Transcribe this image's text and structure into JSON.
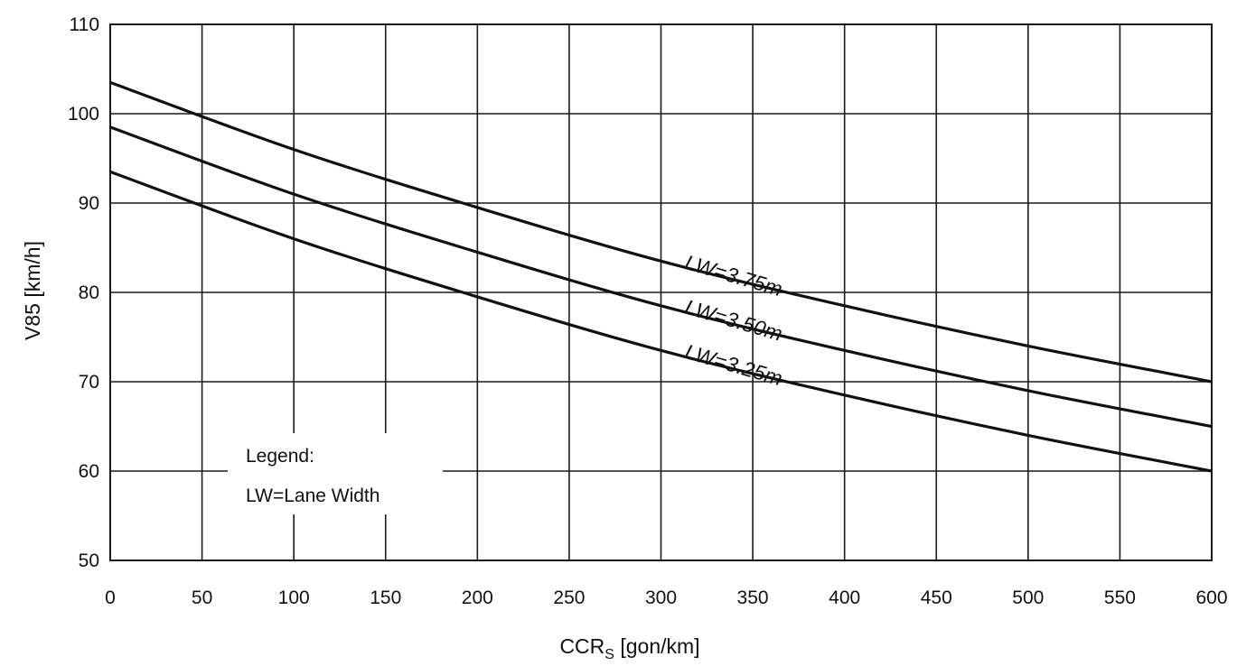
{
  "chart_data": {
    "type": "line",
    "xlabel": "CCR",
    "xlabel_sub": "S",
    "xlabel_unit": " [gon/km]",
    "ylabel": "V85 [km/h]",
    "xlim": [
      0,
      600
    ],
    "ylim": [
      50,
      110
    ],
    "x_ticks": [
      0,
      50,
      100,
      150,
      200,
      250,
      300,
      350,
      400,
      450,
      500,
      550,
      600
    ],
    "y_ticks": [
      50,
      60,
      70,
      80,
      90,
      100,
      110
    ],
    "grid": true,
    "x": [
      0,
      100,
      200,
      300,
      400,
      500,
      600
    ],
    "series": [
      {
        "name": "LW=3.75m",
        "values": [
          103.5,
          96.0,
          89.5,
          83.5,
          78.5,
          74.0,
          70.0
        ]
      },
      {
        "name": "LW=3.50m",
        "values": [
          98.5,
          91.0,
          84.5,
          78.5,
          73.5,
          69.0,
          65.0
        ]
      },
      {
        "name": "LW=3.25m",
        "values": [
          93.5,
          86.0,
          79.5,
          73.5,
          68.5,
          64.0,
          60.0
        ]
      }
    ],
    "legend": {
      "title": "Legend:",
      "text": "LW=Lane Width",
      "placement": "bottom-left"
    },
    "colors": {
      "lines": "#111111",
      "grid": "#1a1a1a",
      "background": "#ffffff"
    }
  }
}
